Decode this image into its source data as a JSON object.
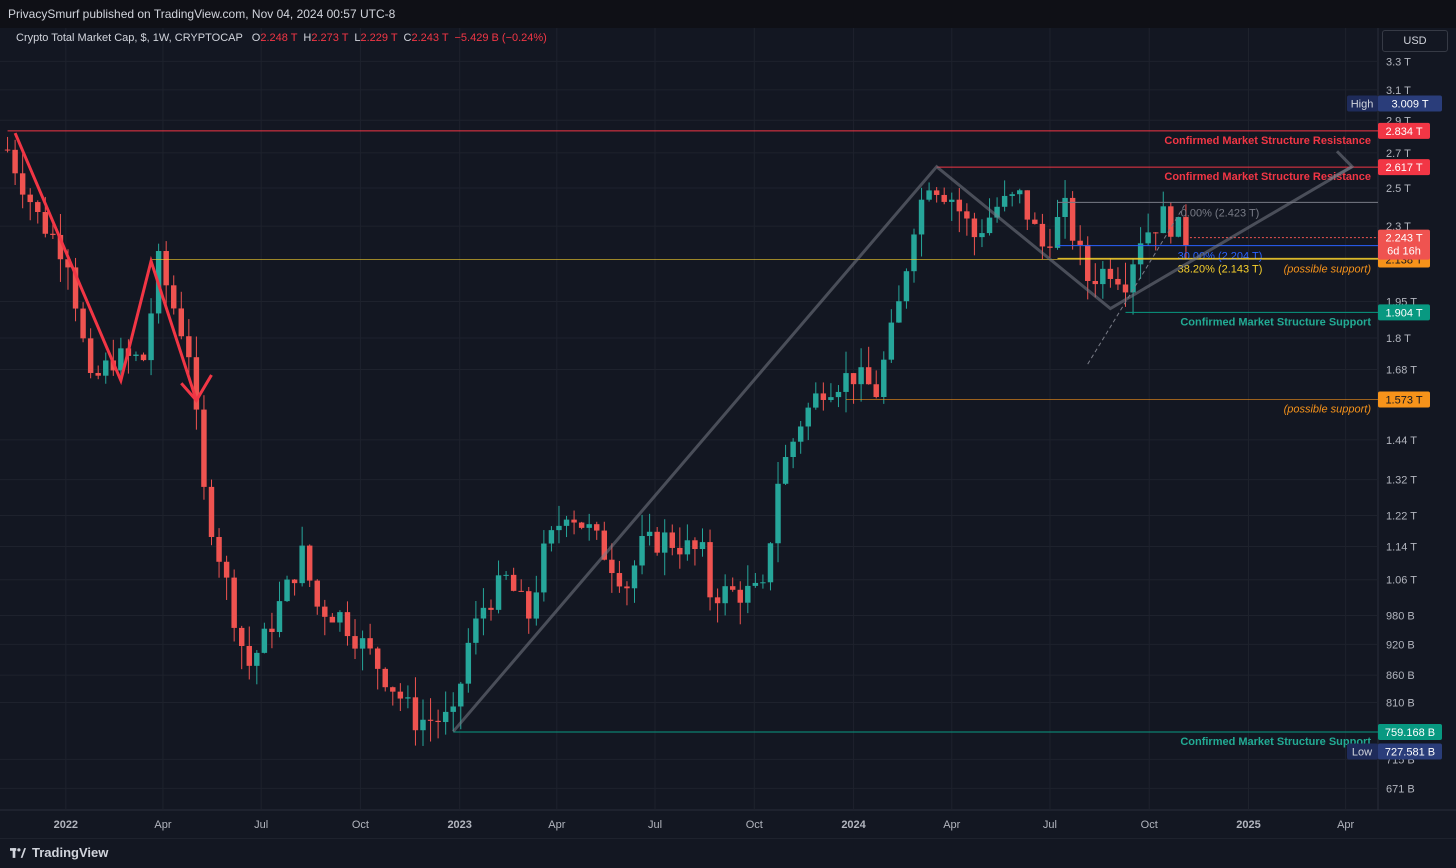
{
  "header": {
    "published": "PrivacySmurf published on TradingView.com, Nov 04, 2024 00:57 UTC-8"
  },
  "legend": {
    "title": "Crypto Total Market Cap, $, 1W, CRYPTOCAP",
    "o_label": "O",
    "o_value": "2.248 T",
    "h_label": "H",
    "h_value": "2.273 T",
    "l_label": "L",
    "l_value": "2.229 T",
    "c_label": "C",
    "c_value": "2.243 T",
    "change": "−5.429 B (−0.24%)"
  },
  "currency_button": "USD",
  "footer": {
    "brand": "TradingView"
  },
  "colors": {
    "up": "#26a69a",
    "down": "#ef5350",
    "background": "#131722",
    "resistance": "#f23645",
    "support": "#089981",
    "fib0": "#787b86",
    "fib236": "#2962ff",
    "fib382": "#f7d02c",
    "possible_support": "#f7931a"
  },
  "chart_data": {
    "type": "candlestick",
    "interval": "1W",
    "symbol": "CRYPTOCAP",
    "y_scale": "log",
    "ylim": [
      0.64,
      3.55
    ],
    "x_range": [
      "2021-11-01",
      "2025-05-01"
    ],
    "y_ticks": [
      "3.3 T",
      "3.1 T",
      "2.9 T",
      "2.7 T",
      "2.5 T",
      "2.3 T",
      "1.95 T",
      "1.8 T",
      "1.68 T",
      "1.44 T",
      "1.32 T",
      "1.22 T",
      "1.14 T",
      "1.06 T",
      "980 B",
      "920 B",
      "860 B",
      "810 B",
      "715 B",
      "671 B"
    ],
    "y_tick_values": [
      3.3,
      3.1,
      2.9,
      2.7,
      2.5,
      2.3,
      1.95,
      1.8,
      1.68,
      1.44,
      1.32,
      1.22,
      1.14,
      1.06,
      0.98,
      0.92,
      0.86,
      0.81,
      0.715,
      0.671
    ],
    "x_ticks": [
      "2022",
      "Apr",
      "Jul",
      "Oct",
      "2023",
      "Apr",
      "Jul",
      "Oct",
      "2024",
      "Apr",
      "Jul",
      "Oct",
      "2025",
      "Apr"
    ],
    "x_tick_dates": [
      "2022-01-01",
      "2022-04-01",
      "2022-07-01",
      "2022-10-01",
      "2023-01-01",
      "2023-04-01",
      "2023-07-01",
      "2023-10-01",
      "2024-01-01",
      "2024-04-01",
      "2024-07-01",
      "2024-10-01",
      "2025-01-01",
      "2025-04-01"
    ],
    "bold_x_ticks": [
      "2022",
      "2023",
      "2024",
      "2025"
    ],
    "path_points": [
      [
        "2021-11-08",
        2.72
      ],
      [
        "2021-12-06",
        2.35
      ],
      [
        "2022-01-03",
        2.15
      ],
      [
        "2022-01-24",
        1.62
      ],
      [
        "2022-02-14",
        1.72
      ],
      [
        "2022-03-14",
        1.72
      ],
      [
        "2022-03-28",
        2.12
      ],
      [
        "2022-04-25",
        1.75
      ],
      [
        "2022-05-09",
        1.28
      ],
      [
        "2022-06-13",
        0.92
      ],
      [
        "2022-06-20",
        0.88
      ],
      [
        "2022-07-04",
        0.93
      ],
      [
        "2022-08-08",
        1.12
      ],
      [
        "2022-08-22",
        1.0
      ],
      [
        "2022-09-12",
        0.98
      ],
      [
        "2022-10-10",
        0.9
      ],
      [
        "2022-11-07",
        0.82
      ],
      [
        "2022-11-21",
        0.78
      ],
      [
        "2022-12-26",
        0.78
      ],
      [
        "2023-01-09",
        0.92
      ],
      [
        "2023-01-23",
        1.0
      ],
      [
        "2023-02-13",
        1.06
      ],
      [
        "2023-03-06",
        0.98
      ],
      [
        "2023-03-20",
        1.12
      ],
      [
        "2023-04-10",
        1.24
      ],
      [
        "2023-05-01",
        1.18
      ],
      [
        "2023-06-05",
        1.05
      ],
      [
        "2023-06-19",
        1.14
      ],
      [
        "2023-07-10",
        1.16
      ],
      [
        "2023-08-14",
        1.12
      ],
      [
        "2023-08-21",
        1.03
      ],
      [
        "2023-09-11",
        1.03
      ],
      [
        "2023-10-09",
        1.03
      ],
      [
        "2023-10-23",
        1.32
      ],
      [
        "2023-11-13",
        1.5
      ],
      [
        "2023-12-04",
        1.62
      ],
      [
        "2024-01-01",
        1.66
      ],
      [
        "2024-01-22",
        1.6
      ],
      [
        "2024-02-12",
        1.93
      ],
      [
        "2024-02-26",
        2.32
      ],
      [
        "2024-03-11",
        2.55
      ],
      [
        "2024-04-01",
        2.45
      ],
      [
        "2024-04-22",
        2.25
      ],
      [
        "2024-05-13",
        2.4
      ],
      [
        "2024-06-03",
        2.45
      ],
      [
        "2024-06-24",
        2.2
      ],
      [
        "2024-07-15",
        2.38
      ],
      [
        "2024-08-05",
        2.05
      ],
      [
        "2024-08-26",
        2.1
      ],
      [
        "2024-09-09",
        2.05
      ],
      [
        "2024-09-23",
        2.25
      ],
      [
        "2024-10-14",
        2.35
      ],
      [
        "2024-11-04",
        2.243
      ]
    ],
    "drawings": {
      "resistance_lines": [
        {
          "label": "Confirmed Market Structure Resistance",
          "value": 2.834,
          "price_tag": "2.834 T"
        },
        {
          "label": "Confirmed Market Structure Resistance",
          "value": 2.617,
          "price_tag": "2.617 T"
        }
      ],
      "support_lines": [
        {
          "label": "Confirmed Market Structure Support",
          "value": 1.904,
          "price_tag": "1.904 T"
        },
        {
          "label": "Confirmed Market Structure Support",
          "value": 0.759168,
          "price_tag": "759.168 B"
        }
      ],
      "possible_support": [
        {
          "label": "(possible support)",
          "value": 2.138,
          "price_tag": "2.138 T"
        },
        {
          "label": "(possible support)",
          "value": 1.573,
          "price_tag": "1.573 T"
        }
      ],
      "fib_levels": [
        {
          "label": "0.00% (2.423 T)",
          "value": 2.423
        },
        {
          "label": "30.00% (2.204 T)",
          "value": 2.204
        },
        {
          "label": "38.20% (2.143 T)",
          "value": 2.143
        }
      ],
      "high": {
        "label": "High",
        "value": 3.009,
        "price_tag": "3.009 T"
      },
      "low": {
        "label": "Low",
        "value": 0.727581,
        "price_tag": "727.581 B"
      },
      "last_price": {
        "value": 2.243,
        "price_tag": "2.243 T",
        "countdown": "6d 16h"
      }
    }
  }
}
